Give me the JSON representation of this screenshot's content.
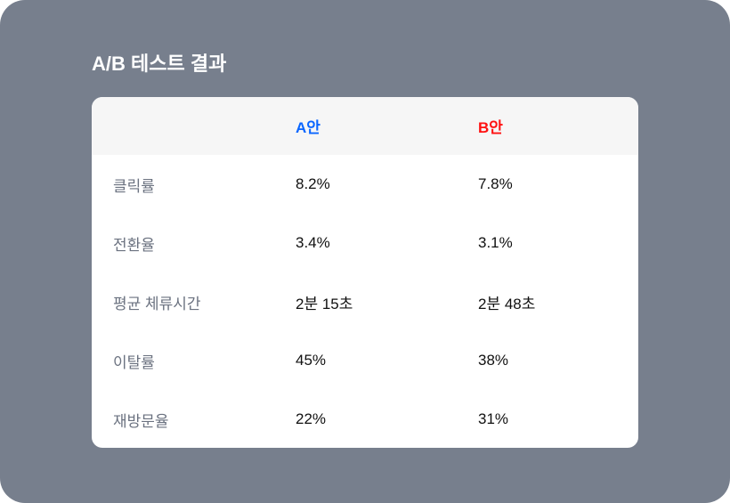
{
  "title": "A/B 테스트 결과",
  "colors": {
    "background": "#777f8d",
    "variant_a": "#0a66ff",
    "variant_b": "#ff1010"
  },
  "table": {
    "headers": [
      "",
      "A안",
      "B안"
    ],
    "rows": [
      {
        "metric": "클릭률",
        "a": "8.2%",
        "b": "7.8%"
      },
      {
        "metric": "전환율",
        "a": "3.4%",
        "b": "3.1%"
      },
      {
        "metric": "평균 체류시간",
        "a": "2분 15초",
        "b": "2분 48초"
      },
      {
        "metric": "이탈률",
        "a": "45%",
        "b": "38%"
      },
      {
        "metric": "재방문율",
        "a": "22%",
        "b": "31%"
      }
    ]
  }
}
